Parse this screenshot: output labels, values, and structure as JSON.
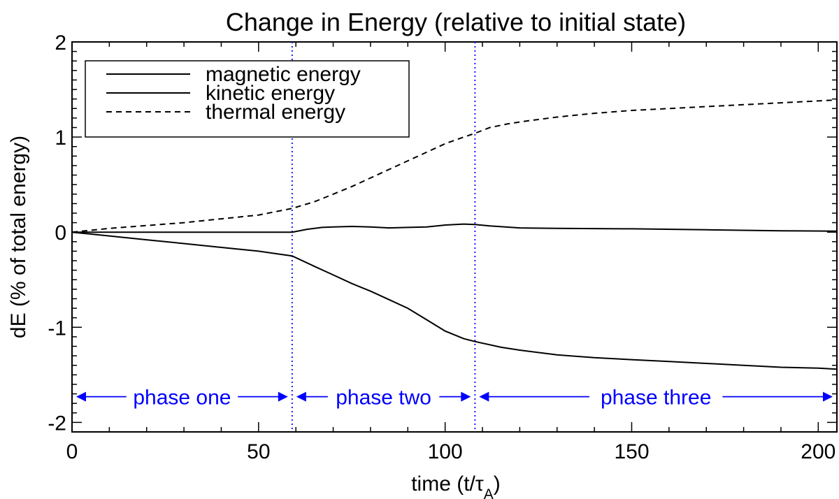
{
  "chart_data": {
    "type": "line",
    "title": "Change in Energy (relative to initial state)",
    "xlabel": "time (t/",
    "xlabel_symbol": "τ",
    "xlabel_subscript": "A",
    "xlabel_close": ")",
    "ylabel": "dE (% of total energy)",
    "xlim": [
      0,
      205
    ],
    "ylim": [
      -2.1,
      2.0
    ],
    "xticks": [
      0,
      50,
      100,
      150,
      200
    ],
    "xtick_labels": [
      "0",
      "50",
      "100",
      "150",
      "200"
    ],
    "yticks": [
      -2,
      -1,
      0,
      1,
      2
    ],
    "ytick_labels": [
      "-2",
      "-1",
      "0",
      "1",
      "2"
    ],
    "grid": false,
    "legend_position": "top-left",
    "series": [
      {
        "name": "magnetic energy",
        "style": "solid",
        "x": [
          0,
          10,
          20,
          30,
          40,
          50,
          59,
          65,
          70,
          75,
          80,
          85,
          90,
          95,
          100,
          105,
          108,
          115,
          120,
          130,
          140,
          150,
          160,
          170,
          180,
          190,
          200,
          205
        ],
        "y": [
          0,
          -0.04,
          -0.08,
          -0.12,
          -0.16,
          -0.2,
          -0.25,
          -0.36,
          -0.45,
          -0.54,
          -0.62,
          -0.71,
          -0.8,
          -0.92,
          -1.04,
          -1.12,
          -1.15,
          -1.21,
          -1.24,
          -1.29,
          -1.32,
          -1.34,
          -1.36,
          -1.38,
          -1.4,
          -1.42,
          -1.43,
          -1.44
        ]
      },
      {
        "name": "kinetic energy",
        "style": "solid",
        "x": [
          0,
          10,
          20,
          30,
          40,
          50,
          59,
          63,
          67,
          70,
          75,
          80,
          85,
          90,
          95,
          100,
          105,
          108,
          112,
          120,
          130,
          150,
          170,
          190,
          205
        ],
        "y": [
          0,
          0,
          0,
          0,
          0,
          0,
          0,
          0.03,
          0.05,
          0.055,
          0.06,
          0.055,
          0.045,
          0.05,
          0.055,
          0.075,
          0.085,
          0.08,
          0.065,
          0.045,
          0.04,
          0.035,
          0.025,
          0.015,
          0.01
        ]
      },
      {
        "name": "thermal energy",
        "style": "dashed",
        "x": [
          0,
          10,
          20,
          30,
          40,
          50,
          59,
          65,
          70,
          75,
          80,
          85,
          90,
          95,
          100,
          105,
          108,
          112,
          117,
          122,
          130,
          140,
          150,
          160,
          170,
          180,
          190,
          200,
          205
        ],
        "y": [
          0,
          0.04,
          0.07,
          0.1,
          0.14,
          0.18,
          0.25,
          0.32,
          0.4,
          0.48,
          0.57,
          0.66,
          0.75,
          0.84,
          0.93,
          1.0,
          1.04,
          1.1,
          1.14,
          1.17,
          1.21,
          1.25,
          1.28,
          1.3,
          1.32,
          1.34,
          1.36,
          1.38,
          1.39
        ]
      }
    ],
    "vlines": [
      59,
      108
    ],
    "phases": [
      {
        "label": "phase one",
        "x0": 0,
        "x1": 59
      },
      {
        "label": "phase two",
        "x0": 59,
        "x1": 108
      },
      {
        "label": "phase three",
        "x0": 108,
        "x1": 205
      }
    ],
    "phase_y": -1.73,
    "colors": {
      "lines": "#000000",
      "phase": "#0000ff",
      "divider": "#1a1aff"
    }
  }
}
